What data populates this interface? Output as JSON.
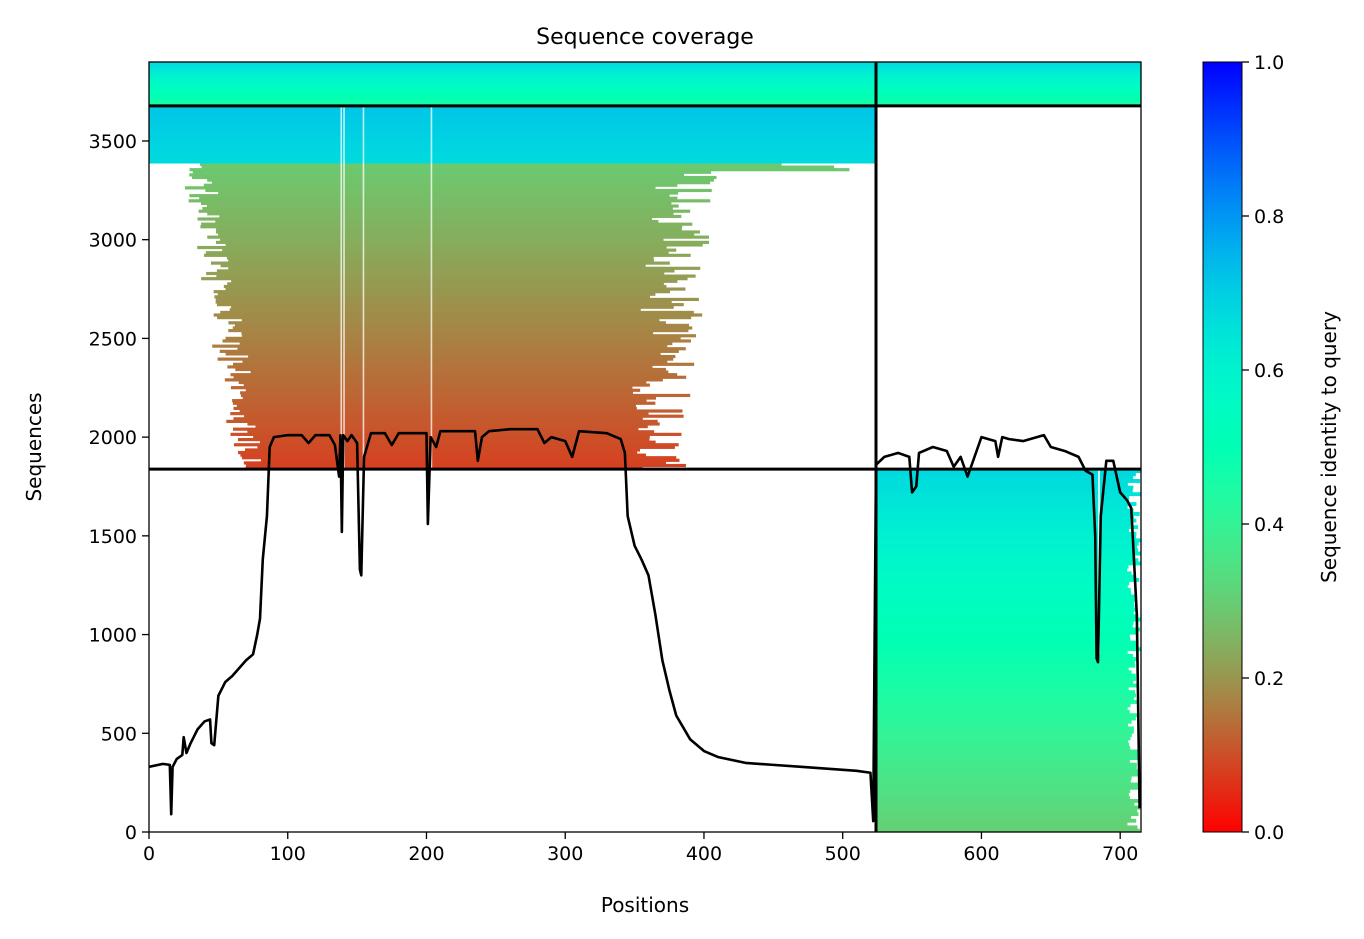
{
  "chart_data": {
    "type": "heatmap",
    "title": "Sequence coverage",
    "xlabel": "Positions",
    "ylabel": "Sequences",
    "xlim": [
      0,
      715
    ],
    "ylim": [
      0,
      3900
    ],
    "x_ticks": [
      0,
      100,
      200,
      300,
      400,
      500,
      600,
      700
    ],
    "y_ticks": [
      0,
      500,
      1000,
      1500,
      2000,
      2500,
      3000,
      3500
    ],
    "colorbar": {
      "label": "Sequence identity to query",
      "range": [
        0,
        1
      ],
      "ticks": [
        "0.0",
        "0.2",
        "0.4",
        "0.6",
        "0.8",
        "1.0"
      ],
      "colormap": "rainbow_r"
    },
    "separators": {
      "vertical_x": [
        524
      ],
      "horizontal_y": [
        1838,
        3678
      ]
    },
    "blocks": [
      {
        "name": "chain_A_only",
        "x": [
          0,
          524
        ],
        "y": [
          1838,
          3678
        ],
        "identity_low": 0.08,
        "identity_high": 0.72
      },
      {
        "name": "chain_B_only",
        "x": [
          524,
          715
        ],
        "y": [
          0,
          1838
        ],
        "identity_low": 0.3,
        "identity_high": 0.68
      },
      {
        "name": "paired",
        "x": [
          0,
          715
        ],
        "y": [
          3678,
          3900
        ],
        "identity_low": 0.45,
        "identity_high": 0.68
      }
    ],
    "coverage_line": {
      "name": "coverage",
      "points": [
        [
          0,
          330
        ],
        [
          10,
          345
        ],
        [
          15,
          340
        ],
        [
          16,
          90
        ],
        [
          17,
          330
        ],
        [
          20,
          370
        ],
        [
          24,
          390
        ],
        [
          25,
          480
        ],
        [
          27,
          400
        ],
        [
          30,
          450
        ],
        [
          35,
          520
        ],
        [
          40,
          560
        ],
        [
          44,
          570
        ],
        [
          45,
          450
        ],
        [
          47,
          440
        ],
        [
          50,
          690
        ],
        [
          55,
          760
        ],
        [
          60,
          790
        ],
        [
          65,
          830
        ],
        [
          70,
          870
        ],
        [
          75,
          900
        ],
        [
          78,
          1000
        ],
        [
          80,
          1080
        ],
        [
          82,
          1380
        ],
        [
          85,
          1600
        ],
        [
          87,
          1950
        ],
        [
          90,
          2000
        ],
        [
          100,
          2010
        ],
        [
          110,
          2010
        ],
        [
          115,
          1970
        ],
        [
          120,
          2010
        ],
        [
          130,
          2010
        ],
        [
          134,
          1960
        ],
        [
          137,
          1800
        ],
        [
          138,
          2010
        ],
        [
          139,
          1520
        ],
        [
          140,
          2010
        ],
        [
          143,
          1980
        ],
        [
          146,
          2010
        ],
        [
          150,
          1970
        ],
        [
          152,
          1330
        ],
        [
          153,
          1300
        ],
        [
          155,
          1900
        ],
        [
          160,
          2020
        ],
        [
          170,
          2020
        ],
        [
          175,
          1960
        ],
        [
          180,
          2020
        ],
        [
          190,
          2020
        ],
        [
          200,
          2020
        ],
        [
          201,
          1560
        ],
        [
          203,
          2000
        ],
        [
          207,
          1950
        ],
        [
          210,
          2030
        ],
        [
          220,
          2030
        ],
        [
          235,
          2030
        ],
        [
          237,
          1880
        ],
        [
          240,
          2000
        ],
        [
          245,
          2030
        ],
        [
          260,
          2040
        ],
        [
          280,
          2040
        ],
        [
          285,
          1970
        ],
        [
          290,
          2000
        ],
        [
          300,
          1980
        ],
        [
          305,
          1900
        ],
        [
          310,
          2030
        ],
        [
          330,
          2020
        ],
        [
          340,
          1990
        ],
        [
          343,
          1920
        ],
        [
          345,
          1600
        ],
        [
          350,
          1450
        ],
        [
          355,
          1380
        ],
        [
          360,
          1300
        ],
        [
          365,
          1100
        ],
        [
          370,
          870
        ],
        [
          375,
          720
        ],
        [
          380,
          590
        ],
        [
          390,
          470
        ],
        [
          400,
          410
        ],
        [
          410,
          380
        ],
        [
          430,
          350
        ],
        [
          450,
          340
        ],
        [
          470,
          330
        ],
        [
          490,
          320
        ],
        [
          510,
          310
        ],
        [
          520,
          300
        ],
        [
          522,
          55
        ],
        [
          524,
          1860
        ],
        [
          530,
          1900
        ],
        [
          540,
          1920
        ],
        [
          548,
          1900
        ],
        [
          550,
          1720
        ],
        [
          553,
          1750
        ],
        [
          555,
          1920
        ],
        [
          565,
          1950
        ],
        [
          575,
          1930
        ],
        [
          580,
          1850
        ],
        [
          585,
          1900
        ],
        [
          590,
          1800
        ],
        [
          595,
          1900
        ],
        [
          600,
          2000
        ],
        [
          610,
          1980
        ],
        [
          612,
          1900
        ],
        [
          615,
          2000
        ],
        [
          620,
          1990
        ],
        [
          630,
          1980
        ],
        [
          640,
          2000
        ],
        [
          645,
          2010
        ],
        [
          650,
          1950
        ],
        [
          660,
          1930
        ],
        [
          670,
          1900
        ],
        [
          675,
          1830
        ],
        [
          680,
          1810
        ],
        [
          682,
          1500
        ],
        [
          683,
          880
        ],
        [
          684,
          860
        ],
        [
          686,
          1600
        ],
        [
          690,
          1880
        ],
        [
          695,
          1880
        ],
        [
          700,
          1720
        ],
        [
          705,
          1680
        ],
        [
          708,
          1640
        ],
        [
          712,
          1100
        ],
        [
          714,
          120
        ]
      ]
    }
  }
}
